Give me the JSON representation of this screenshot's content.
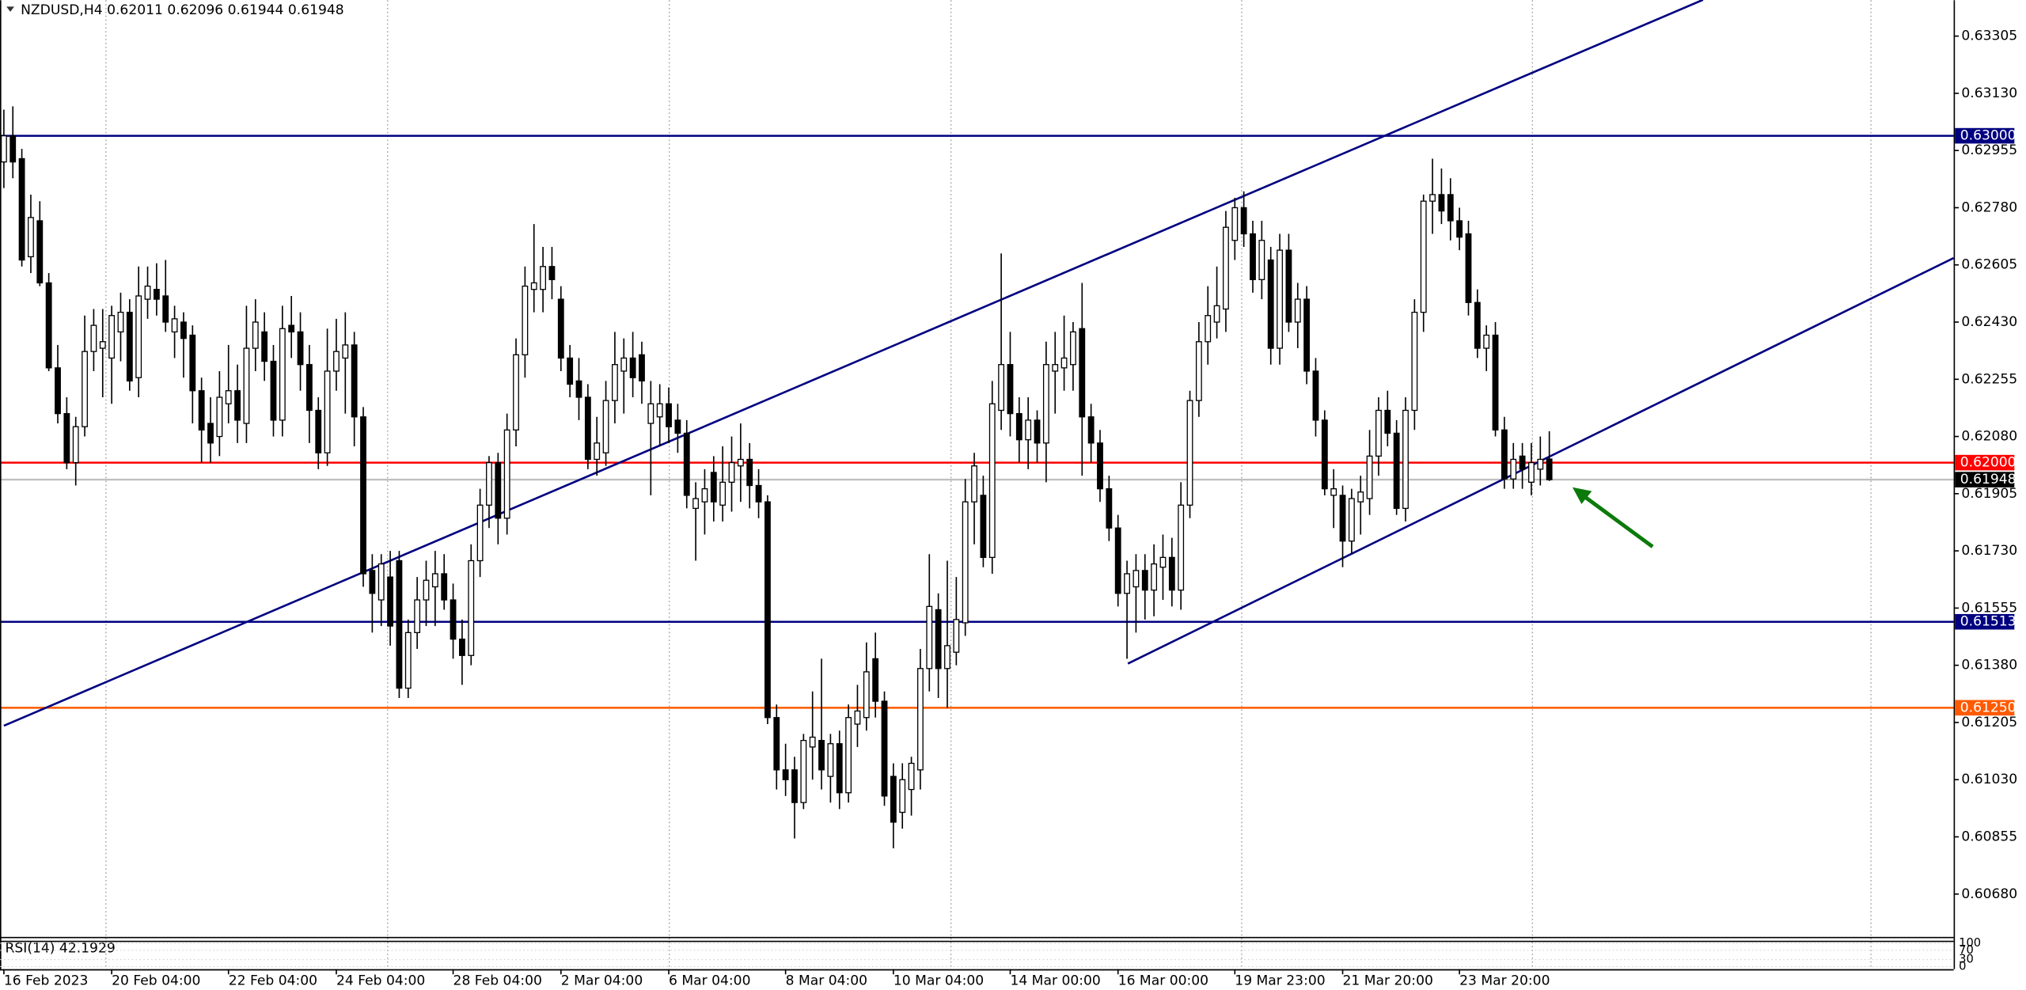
{
  "chart_data": {
    "type": "candlestick",
    "title": "NZDUSD,H4  0.62011 0.62096 0.61944 0.61948",
    "xlim": [
      -0.43,
      217
    ],
    "ylim": [
      0.60549,
      0.63415
    ],
    "xticks": [
      {
        "value": 0,
        "label": "16 Feb 2023"
      },
      {
        "value": 12,
        "label": "20 Feb 04:00"
      },
      {
        "value": 25,
        "label": "22 Feb 04:00"
      },
      {
        "value": 37,
        "label": "24 Feb 04:00"
      },
      {
        "value": 50,
        "label": "28 Feb 04:00"
      },
      {
        "value": 62,
        "label": "2 Mar 04:00"
      },
      {
        "value": 74,
        "label": "6 Mar 04:00"
      },
      {
        "value": 87,
        "label": "8 Mar 04:00"
      },
      {
        "value": 99,
        "label": "10 Mar 04:00"
      },
      {
        "value": 112,
        "label": "14 Mar 00:00"
      },
      {
        "value": 124,
        "label": "16 Mar 00:00"
      },
      {
        "value": 137,
        "label": "19 Mar 23:00"
      },
      {
        "value": 149,
        "label": "21 Mar 20:00"
      },
      {
        "value": 162,
        "label": "23 Mar 20:00"
      }
    ],
    "yticks": [
      0.63305,
      {
        "value": 0.6313,
        "label": "0.63130"
      },
      0.62955,
      {
        "value": 0.6278,
        "label": "0.62780"
      },
      0.62605,
      {
        "value": 0.6243,
        "label": "0.62430"
      },
      0.62255,
      {
        "value": 0.6208,
        "label": "0.62080"
      },
      0.61905,
      {
        "value": 0.6173,
        "label": "0.61730"
      },
      0.61555,
      {
        "value": 0.6138,
        "label": "0.61380"
      },
      0.61205,
      {
        "value": 0.6103,
        "label": "0.61030"
      },
      0.60855,
      {
        "value": 0.6068,
        "label": "0.60680"
      }
    ],
    "up_color": "#ffffff",
    "down_color": "#000000",
    "open": [
      0.6292,
      0.63,
      0.6293,
      0.6263,
      0.6274,
      0.6255,
      0.6229,
      0.6215,
      0.62,
      0.6211,
      0.6234,
      0.6235,
      0.6232,
      0.624,
      0.6246,
      0.6226,
      0.625,
      0.6253,
      0.6251,
      0.624,
      0.6243,
      0.6239,
      0.6222,
      0.6212,
      0.6208,
      0.6218,
      0.6222,
      0.6212,
      0.6235,
      0.624,
      0.6231,
      0.6213,
      0.6242,
      0.624,
      0.623,
      0.6216,
      0.6203,
      0.6228,
      0.6232,
      0.6236,
      0.6214,
      0.6167,
      0.6158,
      0.6165,
      0.617,
      0.6131,
      0.6148,
      0.6158,
      0.6162,
      0.6166,
      0.6158,
      0.6146,
      0.6141,
      0.617,
      0.6187,
      0.62,
      0.6183,
      0.621,
      0.6233,
      0.6253,
      0.6253,
      0.626,
      0.625,
      0.6232,
      0.6225,
      0.622,
      0.6201,
      0.6203,
      0.6219,
      0.6228,
      0.6232,
      0.6233,
      0.6212,
      0.6214,
      0.6218,
      0.6213,
      0.6209,
      0.6186,
      0.6188,
      0.6197,
      0.6187,
      0.6194,
      0.6199,
      0.6201,
      0.6193,
      0.6188,
      0.6122,
      0.6106,
      0.6106,
      0.6096,
      0.6113,
      0.6115,
      0.6104,
      0.6114,
      0.6099,
      0.612,
      0.6122,
      0.614,
      0.6127,
      0.6104,
      0.6093,
      0.61,
      0.6106,
      0.6137,
      0.6155,
      0.6137,
      0.6142,
      0.6151,
      0.6188,
      0.619,
      0.6171,
      0.6216,
      0.623,
      0.6215,
      0.6207,
      0.6213,
      0.6206,
      0.6228,
      0.6229,
      0.623,
      0.6241,
      0.6214,
      0.6206,
      0.6192,
      0.618,
      0.616,
      0.6162,
      0.6167,
      0.6161,
      0.6168,
      0.6171,
      0.6161,
      0.6187,
      0.6219,
      0.6237,
      0.6243,
      0.6247,
      0.6268,
      0.6278,
      0.627,
      0.6256,
      0.6262,
      0.6235,
      0.6265,
      0.6243,
      0.625,
      0.6228,
      0.6213,
      0.619,
      0.619,
      0.6176,
      0.6188,
      0.6189,
      0.6202,
      0.6216,
      0.6209,
      0.6186,
      0.6216,
      0.6246,
      0.628,
      0.6282,
      0.6282,
      0.6274,
      0.627,
      0.6249,
      0.6235,
      0.6239,
      0.621,
      0.6195,
      0.6202,
      0.6194,
      0.6198,
      0.62011
    ],
    "high": [
      0.6308,
      0.6309,
      0.6296,
      0.6282,
      0.628,
      0.6258,
      0.6236,
      0.622,
      0.6214,
      0.6245,
      0.6247,
      0.6247,
      0.6248,
      0.6252,
      0.625,
      0.626,
      0.626,
      0.6261,
      0.6262,
      0.6248,
      0.6246,
      0.6242,
      0.6226,
      0.622,
      0.6228,
      0.6236,
      0.623,
      0.6248,
      0.625,
      0.6246,
      0.6236,
      0.6248,
      0.6251,
      0.6246,
      0.6236,
      0.622,
      0.6241,
      0.6244,
      0.6246,
      0.624,
      0.6217,
      0.6172,
      0.6172,
      0.6173,
      0.6173,
      0.6152,
      0.6165,
      0.617,
      0.6173,
      0.6172,
      0.6163,
      0.6152,
      0.6175,
      0.6192,
      0.6202,
      0.6203,
      0.6215,
      0.6238,
      0.626,
      0.6273,
      0.6266,
      0.6266,
      0.6254,
      0.6236,
      0.6232,
      0.6224,
      0.6214,
      0.6225,
      0.624,
      0.6238,
      0.624,
      0.6237,
      0.6225,
      0.6224,
      0.6223,
      0.6218,
      0.6213,
      0.6194,
      0.6198,
      0.6202,
      0.6205,
      0.6208,
      0.6212,
      0.6206,
      0.6198,
      0.619,
      0.6126,
      0.6114,
      0.611,
      0.6117,
      0.613,
      0.614,
      0.6117,
      0.6118,
      0.6126,
      0.6132,
      0.6145,
      0.6148,
      0.613,
      0.6108,
      0.6108,
      0.611,
      0.6143,
      0.6172,
      0.616,
      0.617,
      0.6165,
      0.6195,
      0.6203,
      0.6196,
      0.6225,
      0.6264,
      0.624,
      0.622,
      0.622,
      0.6216,
      0.6237,
      0.624,
      0.6245,
      0.6243,
      0.6255,
      0.6218,
      0.621,
      0.6196,
      0.6184,
      0.617,
      0.6172,
      0.6172,
      0.6175,
      0.6178,
      0.6177,
      0.6194,
      0.6222,
      0.6243,
      0.6254,
      0.626,
      0.6277,
      0.6281,
      0.6283,
      0.6274,
      0.6274,
      0.6266,
      0.627,
      0.627,
      0.6255,
      0.6254,
      0.6232,
      0.6216,
      0.6198,
      0.6193,
      0.6192,
      0.6196,
      0.621,
      0.622,
      0.6222,
      0.6213,
      0.622,
      0.625,
      0.6282,
      0.6293,
      0.629,
      0.6287,
      0.6278,
      0.6274,
      0.6253,
      0.6242,
      0.6243,
      0.6214,
      0.6206,
      0.6206,
      0.6206,
      0.6208,
      0.62096
    ],
    "low": [
      0.6284,
      0.6287,
      0.626,
      0.6258,
      0.6254,
      0.6228,
      0.6212,
      0.6198,
      0.6193,
      0.6208,
      0.6228,
      0.622,
      0.6218,
      0.6231,
      0.6222,
      0.622,
      0.6244,
      0.6245,
      0.624,
      0.6232,
      0.6226,
      0.6212,
      0.62,
      0.62,
      0.6202,
      0.6212,
      0.6206,
      0.6206,
      0.6228,
      0.6225,
      0.6208,
      0.6208,
      0.6232,
      0.6222,
      0.6206,
      0.6198,
      0.6199,
      0.6222,
      0.6215,
      0.6205,
      0.6162,
      0.6148,
      0.615,
      0.6144,
      0.6128,
      0.6128,
      0.6143,
      0.615,
      0.615,
      0.6155,
      0.614,
      0.6132,
      0.6138,
      0.6165,
      0.618,
      0.6175,
      0.6178,
      0.6205,
      0.6226,
      0.6246,
      0.6246,
      0.625,
      0.6228,
      0.622,
      0.6213,
      0.6198,
      0.6196,
      0.6199,
      0.6212,
      0.6215,
      0.622,
      0.6218,
      0.619,
      0.6205,
      0.6206,
      0.6203,
      0.6186,
      0.617,
      0.6178,
      0.6182,
      0.6182,
      0.6185,
      0.6188,
      0.6186,
      0.6183,
      0.612,
      0.61,
      0.6098,
      0.6085,
      0.6094,
      0.6103,
      0.61,
      0.6096,
      0.6094,
      0.6096,
      0.6113,
      0.6118,
      0.6122,
      0.6095,
      0.6082,
      0.6088,
      0.6092,
      0.61,
      0.613,
      0.6128,
      0.6125,
      0.6138,
      0.6147,
      0.6175,
      0.6168,
      0.6166,
      0.621,
      0.6208,
      0.62,
      0.6198,
      0.62,
      0.6194,
      0.6215,
      0.6222,
      0.6222,
      0.6196,
      0.62,
      0.6188,
      0.6176,
      0.6156,
      0.614,
      0.6148,
      0.6152,
      0.6153,
      0.6158,
      0.6156,
      0.6155,
      0.6183,
      0.6214,
      0.623,
      0.6238,
      0.624,
      0.6262,
      0.6266,
      0.6252,
      0.625,
      0.623,
      0.623,
      0.624,
      0.6235,
      0.6224,
      0.6208,
      0.619,
      0.618,
      0.6168,
      0.6172,
      0.6178,
      0.6184,
      0.6196,
      0.6205,
      0.6184,
      0.6182,
      0.621,
      0.624,
      0.627,
      0.6273,
      0.6268,
      0.6265,
      0.6245,
      0.6232,
      0.6228,
      0.6208,
      0.6192,
      0.6192,
      0.6192,
      0.619,
      0.6193,
      0.61944
    ],
    "close": [
      0.63,
      0.6292,
      0.6262,
      0.6275,
      0.6255,
      0.6229,
      0.6215,
      0.62,
      0.6211,
      0.6234,
      0.6242,
      0.6237,
      0.6245,
      0.6246,
      0.6225,
      0.6251,
      0.6254,
      0.625,
      0.6243,
      0.6244,
      0.6238,
      0.6222,
      0.621,
      0.6206,
      0.622,
      0.6222,
      0.6213,
      0.6235,
      0.6243,
      0.6231,
      0.6213,
      0.6241,
      0.624,
      0.623,
      0.6216,
      0.6203,
      0.6228,
      0.6234,
      0.6236,
      0.6214,
      0.6166,
      0.616,
      0.6169,
      0.615,
      0.6131,
      0.6148,
      0.6158,
      0.6164,
      0.6166,
      0.6158,
      0.6146,
      0.6141,
      0.617,
      0.6187,
      0.62,
      0.6183,
      0.621,
      0.6233,
      0.6254,
      0.6255,
      0.626,
      0.6256,
      0.6232,
      0.6224,
      0.622,
      0.6201,
      0.6206,
      0.6219,
      0.623,
      0.6232,
      0.6226,
      0.6225,
      0.6218,
      0.6218,
      0.6211,
      0.6209,
      0.619,
      0.6189,
      0.6192,
      0.6188,
      0.6194,
      0.62,
      0.6201,
      0.6193,
      0.6188,
      0.6122,
      0.6106,
      0.6103,
      0.6096,
      0.6115,
      0.6116,
      0.6106,
      0.6114,
      0.6099,
      0.6122,
      0.6124,
      0.6136,
      0.6127,
      0.6098,
      0.609,
      0.6103,
      0.6108,
      0.6137,
      0.6156,
      0.6137,
      0.6144,
      0.6152,
      0.6188,
      0.6199,
      0.6171,
      0.6218,
      0.623,
      0.6215,
      0.6207,
      0.6213,
      0.6206,
      0.623,
      0.623,
      0.6232,
      0.624,
      0.6214,
      0.6206,
      0.6192,
      0.618,
      0.616,
      0.6166,
      0.6167,
      0.6161,
      0.6169,
      0.6171,
      0.6161,
      0.6187,
      0.6219,
      0.6237,
      0.6245,
      0.6248,
      0.6272,
      0.6278,
      0.627,
      0.6256,
      0.6268,
      0.6235,
      0.6265,
      0.6243,
      0.625,
      0.6228,
      0.6213,
      0.6192,
      0.6192,
      0.6176,
      0.6189,
      0.6191,
      0.6202,
      0.6216,
      0.6209,
      0.6186,
      0.6216,
      0.6246,
      0.628,
      0.6282,
      0.6277,
      0.6274,
      0.6269,
      0.6249,
      0.6235,
      0.6239,
      0.621,
      0.6195,
      0.6201,
      0.6198,
      0.62,
      0.6201,
      0.61948
    ],
    "levels": [
      {
        "value": 0.63,
        "label": "0.63000",
        "color": "#000080",
        "line_color": "#000080"
      },
      {
        "value": 0.62,
        "label": "0.62000",
        "color": "#ff0000",
        "line_color": "#ff0000"
      },
      {
        "value": 0.61948,
        "label": "0.61948",
        "color": "#000000",
        "line_color": "#c0c0c0"
      },
      {
        "value": 0.61513,
        "label": "0.61513",
        "color": "#000080",
        "line_color": "#000080"
      },
      {
        "value": 0.6125,
        "label": "0.61250",
        "color": "#ff5a00",
        "line_color": "#ff5a00"
      }
    ],
    "trendlines": [
      {
        "color": "#000080",
        "points": [
          [
            0,
            0.61195
          ],
          [
            189.1,
            0.63416
          ]
        ]
      },
      {
        "color": "#000080",
        "points": [
          [
            125.1,
            0.61385
          ],
          [
            217,
            0.62626
          ]
        ]
      }
    ],
    "rsi": {
      "title": "RSI(14) 42.1929",
      "ylim": [
        0,
        100
      ],
      "yticks": [
        100,
        70,
        30,
        0
      ]
    }
  }
}
